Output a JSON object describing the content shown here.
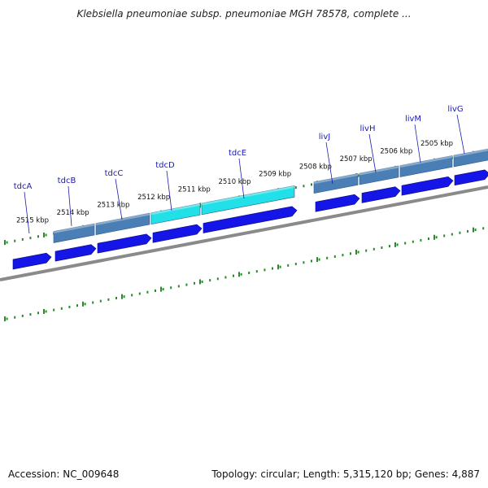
{
  "title": "Klebsiella pneumoniae subsp. pneumoniae MGH 78578, complete ...",
  "footer": {
    "accession": "Accession: NC_009648",
    "topology": "Topology: circular; Length: 5,315,120 bp; Genes: 4,887"
  },
  "colors": {
    "gene_arrow": "#1515e8",
    "gene_highlight": "#22e0e8",
    "cds_band": "#4a7fb5",
    "backbone": "#8a8a8a",
    "tick": "#2a8a2a",
    "gene_label": "#1a1ab4"
  },
  "scale_labels": [
    "2515 kbp",
    "2514 kbp",
    "2513 kbp",
    "2512 kbp",
    "2511 kbp",
    "2510 kbp",
    "2509 kbp",
    "2508 kbp",
    "2507 kbp",
    "2506 kbp",
    "2505 kbp"
  ],
  "genes": [
    {
      "name": "tdcA",
      "highlight": false
    },
    {
      "name": "tdcB",
      "highlight": false
    },
    {
      "name": "tdcC",
      "highlight": false
    },
    {
      "name": "tdcD",
      "highlight": true
    },
    {
      "name": "tdcE",
      "highlight": true
    },
    {
      "name": "livJ",
      "highlight": false
    },
    {
      "name": "livH",
      "highlight": false
    },
    {
      "name": "livM",
      "highlight": false
    },
    {
      "name": "livG",
      "highlight": false
    }
  ]
}
